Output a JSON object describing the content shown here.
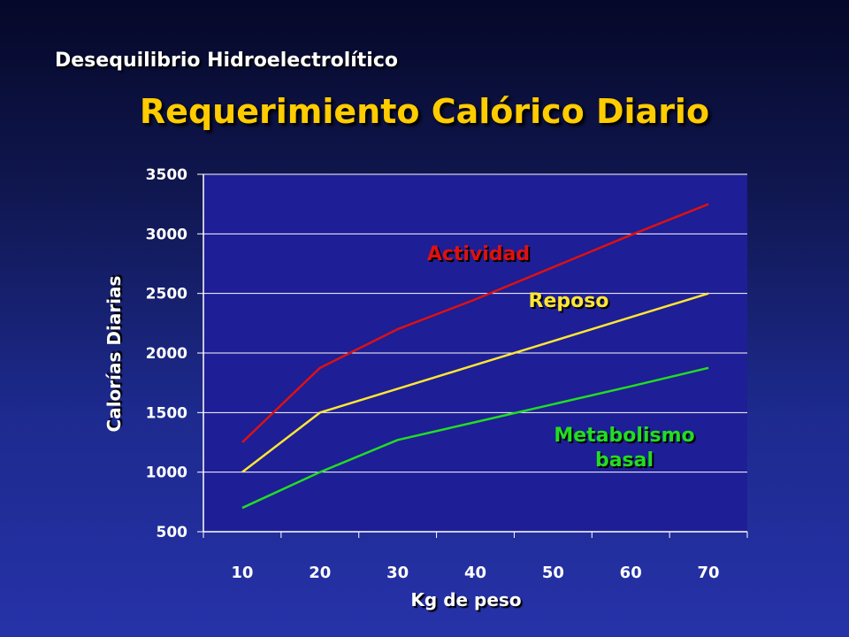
{
  "slide": {
    "section_title": "Desequilibrio Hidroelectrolítico",
    "title": "Requerimiento Calórico Diario",
    "title_color": "#ffcc00"
  },
  "chart_data": {
    "type": "line",
    "x": [
      10,
      20,
      30,
      40,
      50,
      60,
      70
    ],
    "xlabel": "Kg de peso",
    "ylabel": "Calorías Diarias",
    "ylim": [
      500,
      3500
    ],
    "yticks": [
      500,
      1000,
      1500,
      2000,
      2500,
      3000,
      3500
    ],
    "grid": true,
    "plot_background": "#1e1e96",
    "series": [
      {
        "name": "Actividad",
        "color": "#dd1111",
        "label_lines": [
          "Actividad"
        ],
        "values": [
          1250,
          1875,
          2200,
          2450,
          2720,
          2990,
          3250
        ]
      },
      {
        "name": "Reposo",
        "color": "#ffe633",
        "label_lines": [
          "Reposo"
        ],
        "values": [
          1000,
          1500,
          1700,
          1900,
          2100,
          2300,
          2500
        ]
      },
      {
        "name": "Metabolismo basal",
        "color": "#22dd22",
        "label_lines": [
          "Metabolismo",
          "basal"
        ],
        "values": [
          700,
          1000,
          1270,
          1420,
          1570,
          1720,
          1875
        ]
      }
    ]
  }
}
